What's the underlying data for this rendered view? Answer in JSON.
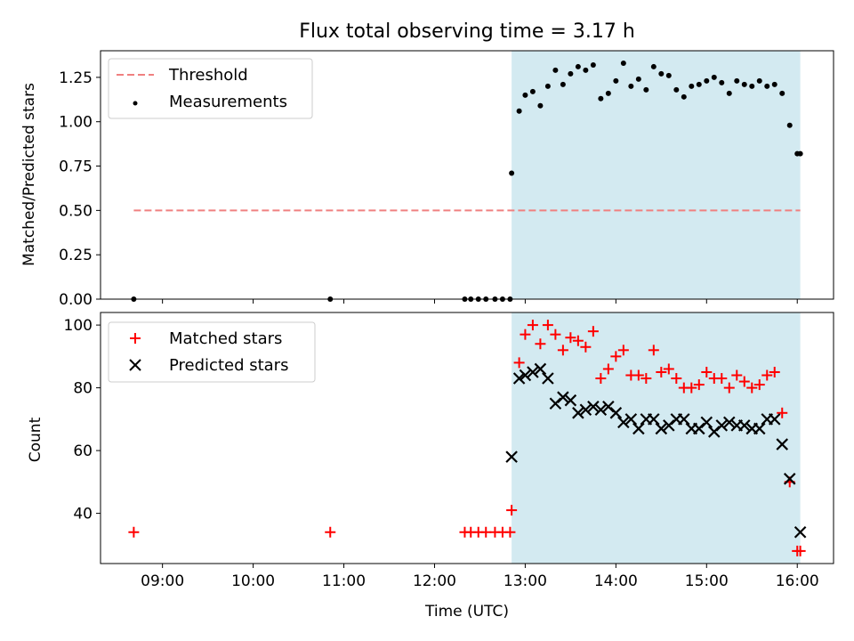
{
  "chart_data": [
    {
      "type": "scatter",
      "title": "Flux total observing time = 3.17 h",
      "ylabel": "Matched/Predicted stars",
      "xlabel": "",
      "xlim": [
        "08:19",
        "16:24"
      ],
      "ylim": [
        0,
        1.4
      ],
      "yticks": [
        0.0,
        0.25,
        0.5,
        0.75,
        1.0,
        1.25
      ],
      "ytick_labels": [
        "0.00",
        "0.25",
        "0.50",
        "0.75",
        "1.00",
        "1.25"
      ],
      "highlight_span": {
        "x0": "12:51",
        "x1": "16:02",
        "color": "#d3eaf1"
      },
      "legend_position": "upper-left",
      "threshold": {
        "name": "Threshold",
        "y": 0.5,
        "x0": "08:41",
        "x1": "16:02",
        "color": "#f08080",
        "style": "dashed"
      },
      "series": [
        {
          "name": "Measurements",
          "color": "#000000",
          "marker": "dot",
          "x": [
            "08:41",
            "10:51",
            "12:20",
            "12:24",
            "12:29",
            "12:34",
            "12:40",
            "12:45",
            "12:50",
            "12:51",
            "12:56",
            "13:00",
            "13:05",
            "13:10",
            "13:15",
            "13:20",
            "13:25",
            "13:30",
            "13:35",
            "13:40",
            "13:45",
            "13:50",
            "13:55",
            "14:00",
            "14:05",
            "14:10",
            "14:15",
            "14:20",
            "14:25",
            "14:30",
            "14:35",
            "14:40",
            "14:45",
            "14:50",
            "14:55",
            "15:00",
            "15:05",
            "15:10",
            "15:15",
            "15:20",
            "15:25",
            "15:30",
            "15:35",
            "15:40",
            "15:45",
            "15:50",
            "15:55",
            "16:00",
            "16:02"
          ],
          "y": [
            0,
            0,
            0,
            0,
            0,
            0,
            0,
            0,
            0,
            0.71,
            1.06,
            1.15,
            1.17,
            1.09,
            1.2,
            1.29,
            1.21,
            1.27,
            1.31,
            1.29,
            1.32,
            1.13,
            1.16,
            1.23,
            1.33,
            1.2,
            1.24,
            1.18,
            1.31,
            1.27,
            1.26,
            1.18,
            1.14,
            1.2,
            1.21,
            1.23,
            1.25,
            1.22,
            1.16,
            1.23,
            1.21,
            1.2,
            1.23,
            1.2,
            1.21,
            1.16,
            0.98,
            0.82,
            0.82
          ]
        }
      ]
    },
    {
      "type": "scatter",
      "title": "",
      "ylabel": "Count",
      "xlabel": "Time (UTC)",
      "xlim": [
        "08:19",
        "16:24"
      ],
      "ylim": [
        24,
        104
      ],
      "yticks": [
        40,
        60,
        80,
        100
      ],
      "ytick_labels": [
        "40",
        "60",
        "80",
        "100"
      ],
      "xticks": [
        "09:00",
        "10:00",
        "11:00",
        "12:00",
        "13:00",
        "14:00",
        "15:00",
        "16:00"
      ],
      "xtick_labels": [
        "09:00",
        "10:00",
        "11:00",
        "12:00",
        "13:00",
        "14:00",
        "15:00",
        "16:00"
      ],
      "highlight_span": {
        "x0": "12:51",
        "x1": "16:02",
        "color": "#d3eaf1"
      },
      "legend_position": "upper-left",
      "series": [
        {
          "name": "Matched stars",
          "color": "#ff0000",
          "marker": "plus",
          "x": [
            "08:41",
            "10:51",
            "12:20",
            "12:24",
            "12:29",
            "12:34",
            "12:40",
            "12:45",
            "12:50",
            "12:51",
            "12:56",
            "13:00",
            "13:05",
            "13:10",
            "13:15",
            "13:20",
            "13:25",
            "13:30",
            "13:35",
            "13:40",
            "13:45",
            "13:50",
            "13:55",
            "14:00",
            "14:05",
            "14:10",
            "14:15",
            "14:20",
            "14:25",
            "14:30",
            "14:35",
            "14:40",
            "14:45",
            "14:50",
            "14:55",
            "15:00",
            "15:05",
            "15:10",
            "15:15",
            "15:20",
            "15:25",
            "15:30",
            "15:35",
            "15:40",
            "15:45",
            "15:50",
            "15:55",
            "16:00",
            "16:02"
          ],
          "y": [
            34,
            34,
            34,
            34,
            34,
            34,
            34,
            34,
            34,
            41,
            88,
            97,
            100,
            94,
            100,
            97,
            92,
            96,
            95,
            93,
            98,
            83,
            86,
            90,
            92,
            84,
            84,
            83,
            92,
            85,
            86,
            83,
            80,
            80,
            81,
            85,
            83,
            83,
            80,
            84,
            82,
            80,
            81,
            84,
            85,
            72,
            50,
            28,
            28
          ]
        },
        {
          "name": "Predicted stars",
          "color": "#000000",
          "marker": "x",
          "x": [
            "12:51",
            "12:56",
            "13:00",
            "13:05",
            "13:10",
            "13:15",
            "13:20",
            "13:25",
            "13:30",
            "13:35",
            "13:40",
            "13:45",
            "13:50",
            "13:55",
            "14:00",
            "14:05",
            "14:10",
            "14:15",
            "14:20",
            "14:25",
            "14:30",
            "14:35",
            "14:40",
            "14:45",
            "14:50",
            "14:55",
            "15:00",
            "15:05",
            "15:10",
            "15:15",
            "15:20",
            "15:25",
            "15:30",
            "15:35",
            "15:40",
            "15:45",
            "15:50",
            "15:55",
            "16:02"
          ],
          "y": [
            58,
            83,
            84,
            85,
            86,
            83,
            75,
            77,
            76,
            72,
            73,
            74,
            73,
            74,
            72,
            69,
            70,
            67,
            70,
            70,
            67,
            68,
            70,
            70,
            67,
            67,
            69,
            66,
            68,
            69,
            68,
            68,
            67,
            67,
            70,
            70,
            62,
            51,
            34
          ]
        }
      ]
    }
  ]
}
